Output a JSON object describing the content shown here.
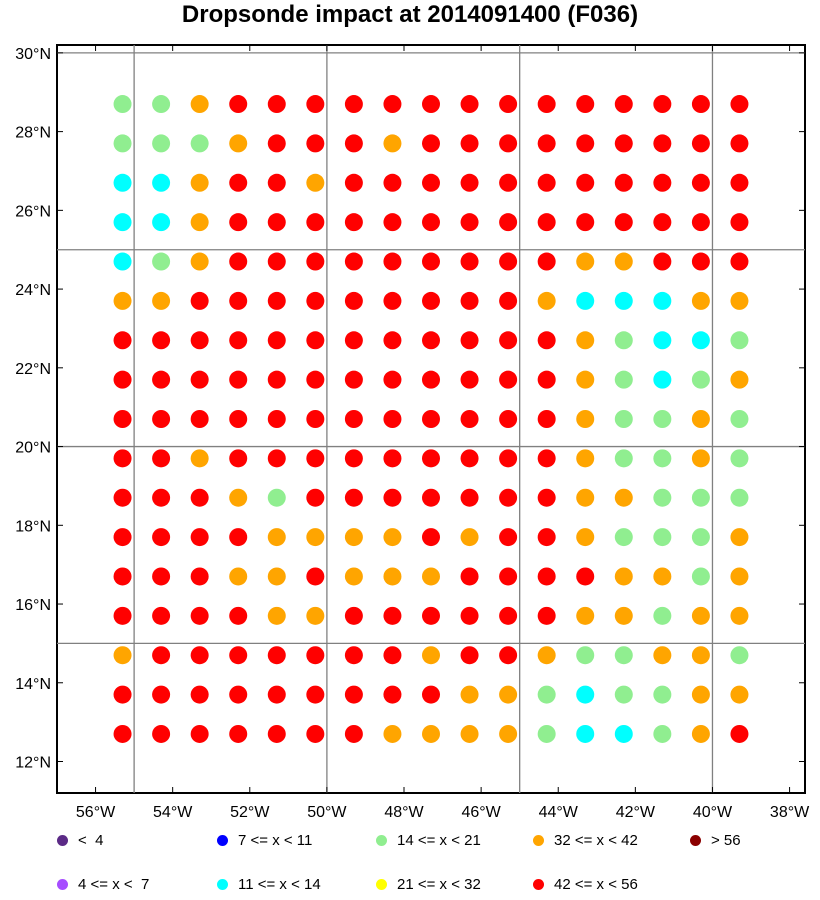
{
  "title": "Dropsonde impact at 2014091400 (F036)",
  "map": {
    "lat_ticks": [
      {
        "value": 30,
        "label": "30°N"
      },
      {
        "value": 28,
        "label": "28°N"
      },
      {
        "value": 26,
        "label": "26°N"
      },
      {
        "value": 24,
        "label": "24°N"
      },
      {
        "value": 22,
        "label": "22°N"
      },
      {
        "value": 20,
        "label": "20°N"
      },
      {
        "value": 18,
        "label": "18°N"
      },
      {
        "value": 16,
        "label": "16°N"
      },
      {
        "value": 14,
        "label": "14°N"
      },
      {
        "value": 12,
        "label": "12°N"
      }
    ],
    "lon_ticks": [
      {
        "value": -56,
        "label": "56°W"
      },
      {
        "value": -54,
        "label": "54°W"
      },
      {
        "value": -52,
        "label": "52°W"
      },
      {
        "value": -50,
        "label": "50°W"
      },
      {
        "value": -48,
        "label": "48°W"
      },
      {
        "value": -46,
        "label": "46°W"
      },
      {
        "value": -44,
        "label": "44°W"
      },
      {
        "value": -42,
        "label": "42°W"
      },
      {
        "value": -40,
        "label": "40°W"
      },
      {
        "value": -38,
        "label": "38°W"
      }
    ],
    "lat_range": [
      11.2,
      30.2
    ],
    "lon_range": [
      -57.0,
      -37.6
    ],
    "grid_lines_lat": [
      30,
      25,
      20,
      15
    ],
    "grid_lines_lon": [
      -55,
      -50,
      -45,
      -40
    ],
    "grid_color": "#808080"
  },
  "points": {
    "lons": [
      -55.3,
      -54.3,
      -53.3,
      -52.3,
      -51.3,
      -50.3,
      -49.3,
      -48.3,
      -47.3,
      -46.3,
      -45.3,
      -44.3,
      -43.3,
      -42.3,
      -41.3,
      -40.3,
      -39.3
    ],
    "lats": [
      28.7,
      27.7,
      26.7,
      25.7,
      24.7,
      23.7,
      22.7,
      21.7,
      20.7,
      19.7,
      18.7,
      17.7,
      16.7,
      15.7,
      14.7,
      13.7,
      12.7
    ],
    "categories": [
      [
        4,
        4,
        6,
        7,
        7,
        7,
        7,
        7,
        7,
        7,
        7,
        7,
        7,
        7,
        7,
        7,
        7
      ],
      [
        4,
        4,
        4,
        6,
        7,
        7,
        7,
        6,
        7,
        7,
        7,
        7,
        7,
        7,
        7,
        7,
        7
      ],
      [
        3,
        3,
        6,
        7,
        7,
        6,
        7,
        7,
        7,
        7,
        7,
        7,
        7,
        7,
        7,
        7,
        7
      ],
      [
        3,
        3,
        6,
        7,
        7,
        7,
        7,
        7,
        7,
        7,
        7,
        7,
        7,
        7,
        7,
        7,
        7
      ],
      [
        3,
        4,
        6,
        7,
        7,
        7,
        7,
        7,
        7,
        7,
        7,
        7,
        6,
        6,
        7,
        7,
        7
      ],
      [
        6,
        6,
        7,
        7,
        7,
        7,
        7,
        7,
        7,
        7,
        7,
        6,
        3,
        3,
        3,
        6,
        6
      ],
      [
        7,
        7,
        7,
        7,
        7,
        7,
        7,
        7,
        7,
        7,
        7,
        7,
        6,
        4,
        3,
        3,
        4
      ],
      [
        7,
        7,
        7,
        7,
        7,
        7,
        7,
        7,
        7,
        7,
        7,
        7,
        6,
        4,
        3,
        4,
        6
      ],
      [
        7,
        7,
        7,
        7,
        7,
        7,
        7,
        7,
        7,
        7,
        7,
        7,
        6,
        4,
        4,
        6,
        4
      ],
      [
        7,
        7,
        6,
        7,
        7,
        7,
        7,
        7,
        7,
        7,
        7,
        7,
        6,
        4,
        4,
        6,
        4
      ],
      [
        7,
        7,
        7,
        6,
        4,
        7,
        7,
        7,
        7,
        7,
        7,
        7,
        6,
        6,
        4,
        4,
        4
      ],
      [
        7,
        7,
        7,
        7,
        6,
        6,
        6,
        6,
        7,
        6,
        7,
        7,
        6,
        4,
        4,
        4,
        6
      ],
      [
        7,
        7,
        7,
        6,
        6,
        7,
        6,
        6,
        6,
        7,
        7,
        7,
        7,
        6,
        6,
        4,
        6
      ],
      [
        7,
        7,
        7,
        7,
        6,
        6,
        7,
        7,
        7,
        7,
        7,
        7,
        6,
        6,
        4,
        6,
        6
      ],
      [
        6,
        7,
        7,
        7,
        7,
        7,
        7,
        7,
        6,
        7,
        7,
        6,
        4,
        4,
        6,
        6,
        4
      ],
      [
        7,
        7,
        7,
        7,
        7,
        7,
        7,
        7,
        7,
        6,
        6,
        4,
        3,
        4,
        4,
        6,
        6
      ],
      [
        7,
        7,
        7,
        7,
        7,
        7,
        7,
        6,
        6,
        6,
        6,
        4,
        3,
        3,
        4,
        6,
        7
      ]
    ]
  },
  "legend": [
    {
      "label": "<  4",
      "color": "#5b2a86",
      "col": 0,
      "row": 0
    },
    {
      "label": "4 <= x <  7",
      "color": "#a64dff",
      "col": 0,
      "row": 1
    },
    {
      "label": "7 <= x < 11",
      "color": "#0000ff",
      "col": 1,
      "row": 0
    },
    {
      "label": "11 <= x < 14",
      "color": "#00ffff",
      "col": 1,
      "row": 1
    },
    {
      "label": "14 <= x < 21",
      "color": "#90ee90",
      "col": 2,
      "row": 0
    },
    {
      "label": "21 <= x < 32",
      "color": "#ffff00",
      "col": 2,
      "row": 1
    },
    {
      "label": "32 <= x < 42",
      "color": "#ffa500",
      "col": 3,
      "row": 0
    },
    {
      "label": "42 <= x < 56",
      "color": "#ff0000",
      "col": 3,
      "row": 1
    },
    {
      "label": "> 56",
      "color": "#8b0000",
      "col": 4,
      "row": 0
    }
  ]
}
